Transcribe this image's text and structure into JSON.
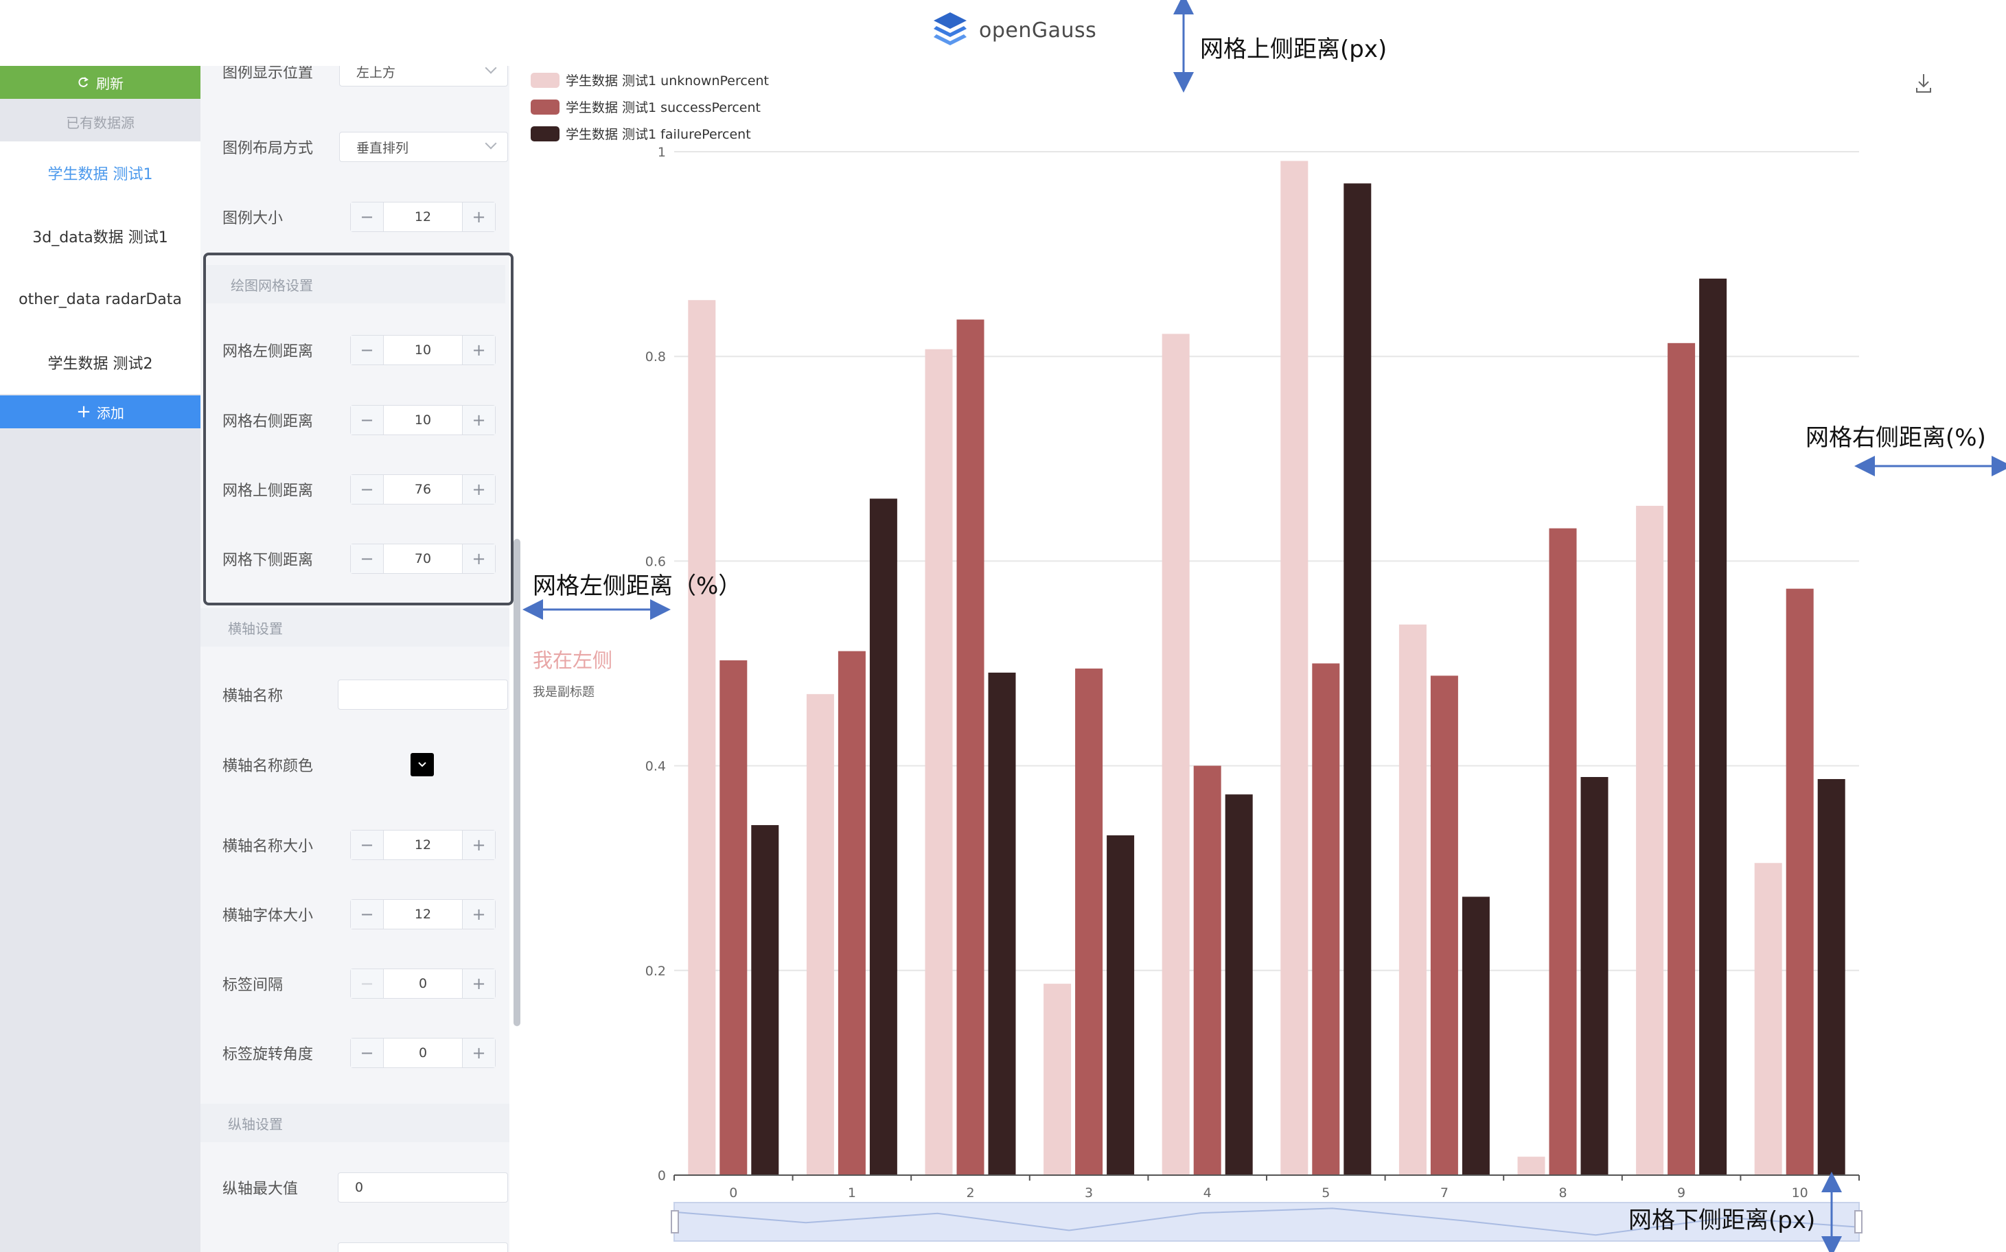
{
  "header": {
    "logo_text": "openGauss"
  },
  "sidebar": {
    "refresh_label": "刷新",
    "datasource_heading": "已有数据源",
    "items": [
      {
        "label": "学生数据 测试1",
        "active": true
      },
      {
        "label": "3d_data数据 测试1",
        "active": false
      },
      {
        "label": "other_data radarData",
        "active": false
      },
      {
        "label": "学生数据 测试2",
        "active": false
      }
    ],
    "add_label": "添加"
  },
  "settings": {
    "legend_position": {
      "label": "图例显示位置",
      "value": "左上方"
    },
    "legend_layout": {
      "label": "图例布局方式",
      "value": "垂直排列"
    },
    "legend_size": {
      "label": "图例大小",
      "value": "12"
    },
    "grid_section": "绘图网格设置",
    "grid_left": {
      "label": "网格左侧距离",
      "value": "10"
    },
    "grid_right": {
      "label": "网格右侧距离",
      "value": "10"
    },
    "grid_top": {
      "label": "网格上侧距离",
      "value": "76"
    },
    "grid_bottom": {
      "label": "网格下侧距离",
      "value": "70"
    },
    "xaxis_section": "横轴设置",
    "xaxis_name": {
      "label": "横轴名称",
      "value": ""
    },
    "xaxis_name_color": {
      "label": "横轴名称颜色",
      "color": "#000000"
    },
    "xaxis_name_size": {
      "label": "横轴名称大小",
      "value": "12"
    },
    "xaxis_font_size": {
      "label": "横轴字体大小",
      "value": "12"
    },
    "label_interval": {
      "label": "标签间隔",
      "value": "0"
    },
    "label_rotate": {
      "label": "标签旋转角度",
      "value": "0"
    },
    "yaxis_section": "纵轴设置",
    "yaxis_max": {
      "label": "纵轴最大值",
      "value": "0"
    }
  },
  "chart_title": {
    "title": "我在左侧",
    "subtitle": "我是副标题"
  },
  "annotations": {
    "top": "网格上侧距离(px)",
    "right": "网格右侧距离(%)",
    "left": "网格左侧距离（%）",
    "bottom": "网格下侧距离(px)"
  },
  "colors": {
    "accent_green": "#6fb24a",
    "accent_blue": "#3f8ff0",
    "series1": "#efd0d0",
    "series2": "#ae5a5a",
    "series3": "#382222",
    "annotation_arrow": "#4a72c4"
  },
  "icons": {
    "download": "download-icon",
    "refresh": "refresh-icon",
    "plus": "plus-icon"
  },
  "chart_data": {
    "type": "bar",
    "categories": [
      "0",
      "1",
      "2",
      "3",
      "4",
      "5",
      "7",
      "8",
      "9",
      "10"
    ],
    "series": [
      {
        "name": "学生数据 测试1  unknownPercent",
        "values": [
          0.855,
          0.47,
          0.807,
          0.187,
          0.822,
          0.991,
          0.538,
          0.018,
          0.654,
          0.305
        ]
      },
      {
        "name": "学生数据 测试1  successPercent",
        "values": [
          0.503,
          0.512,
          0.836,
          0.495,
          0.4,
          0.5,
          0.488,
          0.632,
          0.813,
          0.573
        ]
      },
      {
        "name": "学生数据 测试1  failurePercent",
        "values": [
          0.342,
          0.661,
          0.491,
          0.332,
          0.372,
          0.969,
          0.272,
          0.389,
          0.876,
          0.387
        ]
      }
    ],
    "y_ticks": [
      "0",
      "0.2",
      "0.4",
      "0.6",
      "0.8",
      "1"
    ],
    "ylim": [
      0,
      1
    ],
    "legend": "top-left",
    "grid": true
  }
}
